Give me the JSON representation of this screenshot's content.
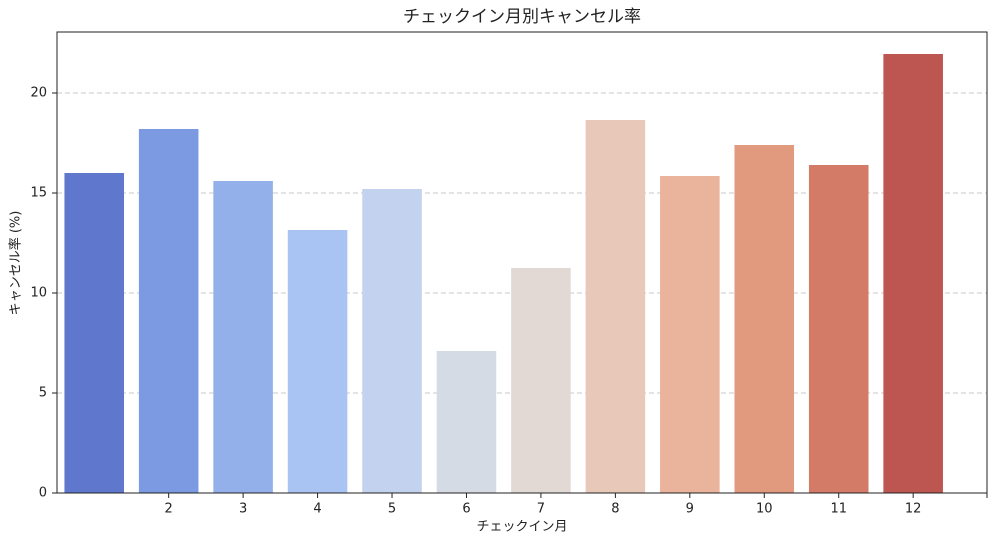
{
  "chart_data": {
    "type": "bar",
    "title": "チェックイン月別キャンセル率",
    "x_label": "チェックイン月",
    "y_label": "キャンセル率 (%)",
    "categories": [
      null,
      "2",
      "3",
      "4",
      "5",
      "6",
      "7",
      "8",
      "9",
      "10",
      "11",
      "12"
    ],
    "values": [
      16.0,
      18.2,
      15.6,
      13.15,
      15.2,
      7.1,
      11.25,
      18.65,
      15.85,
      17.4,
      16.4,
      21.95
    ],
    "colors": [
      "#5f78cd",
      "#7b9ae2",
      "#94b0ea",
      "#a9c3f3",
      "#c3d3ef",
      "#d5dbe4",
      "#e2d9d5",
      "#e8c8b8",
      "#e9b39c",
      "#e19a7e",
      "#d37b67",
      "#bd5650"
    ],
    "ylim": [
      0,
      23.05
    ],
    "yticks": [
      0,
      5,
      10,
      15,
      20
    ],
    "grid": true
  }
}
